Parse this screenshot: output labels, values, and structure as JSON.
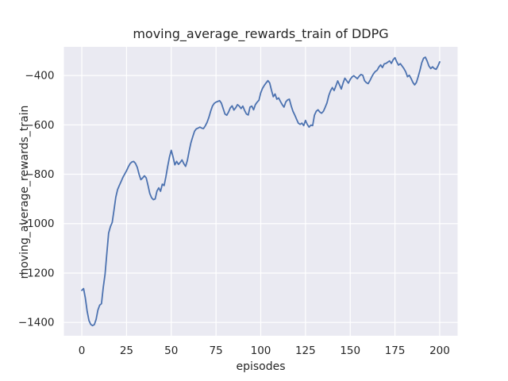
{
  "chart_data": {
    "type": "line",
    "title": "moving_average_rewards_train of DDPG",
    "xlabel": "episodes",
    "ylabel": "moving_average_rewards_train",
    "x_ticks": [
      0,
      25,
      50,
      75,
      100,
      125,
      150,
      175,
      200
    ],
    "x_tick_labels": [
      "0",
      "25",
      "50",
      "75",
      "100",
      "125",
      "150",
      "175",
      "200"
    ],
    "y_ticks": [
      -400,
      -600,
      -800,
      -1000,
      -1200,
      -1400
    ],
    "y_tick_labels": [
      "−400",
      "−600",
      "−800",
      "−1000",
      "−1200",
      "−1400"
    ],
    "xlim": [
      -10,
      210
    ],
    "ylim": [
      -1454,
      -284
    ],
    "grid": true,
    "legend": "none",
    "style": "seaborn-darkgrid",
    "colors": {
      "line": "#4c72b0",
      "plot_background": "#eaeaf2",
      "grid": "#ffffff",
      "text": "#262626",
      "figure_background": "#ffffff"
    },
    "series": [
      {
        "name": "moving_average_rewards_train",
        "x_start": 0,
        "x_step": 1,
        "values": [
          -1270,
          -1263,
          -1302,
          -1355,
          -1392,
          -1408,
          -1413,
          -1409,
          -1388,
          -1350,
          -1330,
          -1324,
          -1258,
          -1205,
          -1120,
          -1038,
          -1012,
          -995,
          -945,
          -893,
          -862,
          -845,
          -829,
          -812,
          -799,
          -786,
          -770,
          -757,
          -750,
          -748,
          -756,
          -772,
          -800,
          -822,
          -815,
          -806,
          -815,
          -845,
          -878,
          -895,
          -903,
          -900,
          -868,
          -855,
          -869,
          -840,
          -846,
          -810,
          -768,
          -730,
          -703,
          -730,
          -762,
          -748,
          -760,
          -752,
          -742,
          -757,
          -768,
          -744,
          -706,
          -672,
          -648,
          -626,
          -616,
          -613,
          -609,
          -613,
          -615,
          -604,
          -590,
          -570,
          -545,
          -524,
          -513,
          -508,
          -505,
          -502,
          -512,
          -534,
          -556,
          -561,
          -548,
          -531,
          -523,
          -540,
          -531,
          -518,
          -524,
          -534,
          -524,
          -542,
          -556,
          -560,
          -528,
          -524,
          -539,
          -518,
          -508,
          -500,
          -470,
          -452,
          -440,
          -430,
          -421,
          -430,
          -460,
          -486,
          -475,
          -496,
          -491,
          -505,
          -518,
          -528,
          -507,
          -499,
          -496,
          -523,
          -545,
          -560,
          -577,
          -593,
          -598,
          -593,
          -603,
          -582,
          -598,
          -609,
          -601,
          -603,
          -561,
          -545,
          -539,
          -548,
          -553,
          -545,
          -529,
          -511,
          -482,
          -462,
          -449,
          -461,
          -442,
          -422,
          -438,
          -455,
          -431,
          -411,
          -421,
          -431,
          -416,
          -406,
          -401,
          -407,
          -413,
          -403,
          -396,
          -399,
          -421,
          -429,
          -433,
          -421,
          -406,
          -393,
          -384,
          -379,
          -366,
          -357,
          -368,
          -353,
          -351,
          -346,
          -341,
          -351,
          -336,
          -328,
          -345,
          -358,
          -352,
          -362,
          -372,
          -385,
          -405,
          -399,
          -412,
          -428,
          -438,
          -428,
          -404,
          -378,
          -348,
          -330,
          -326,
          -342,
          -362,
          -372,
          -365,
          -372,
          -375,
          -362,
          -345
        ]
      }
    ]
  }
}
